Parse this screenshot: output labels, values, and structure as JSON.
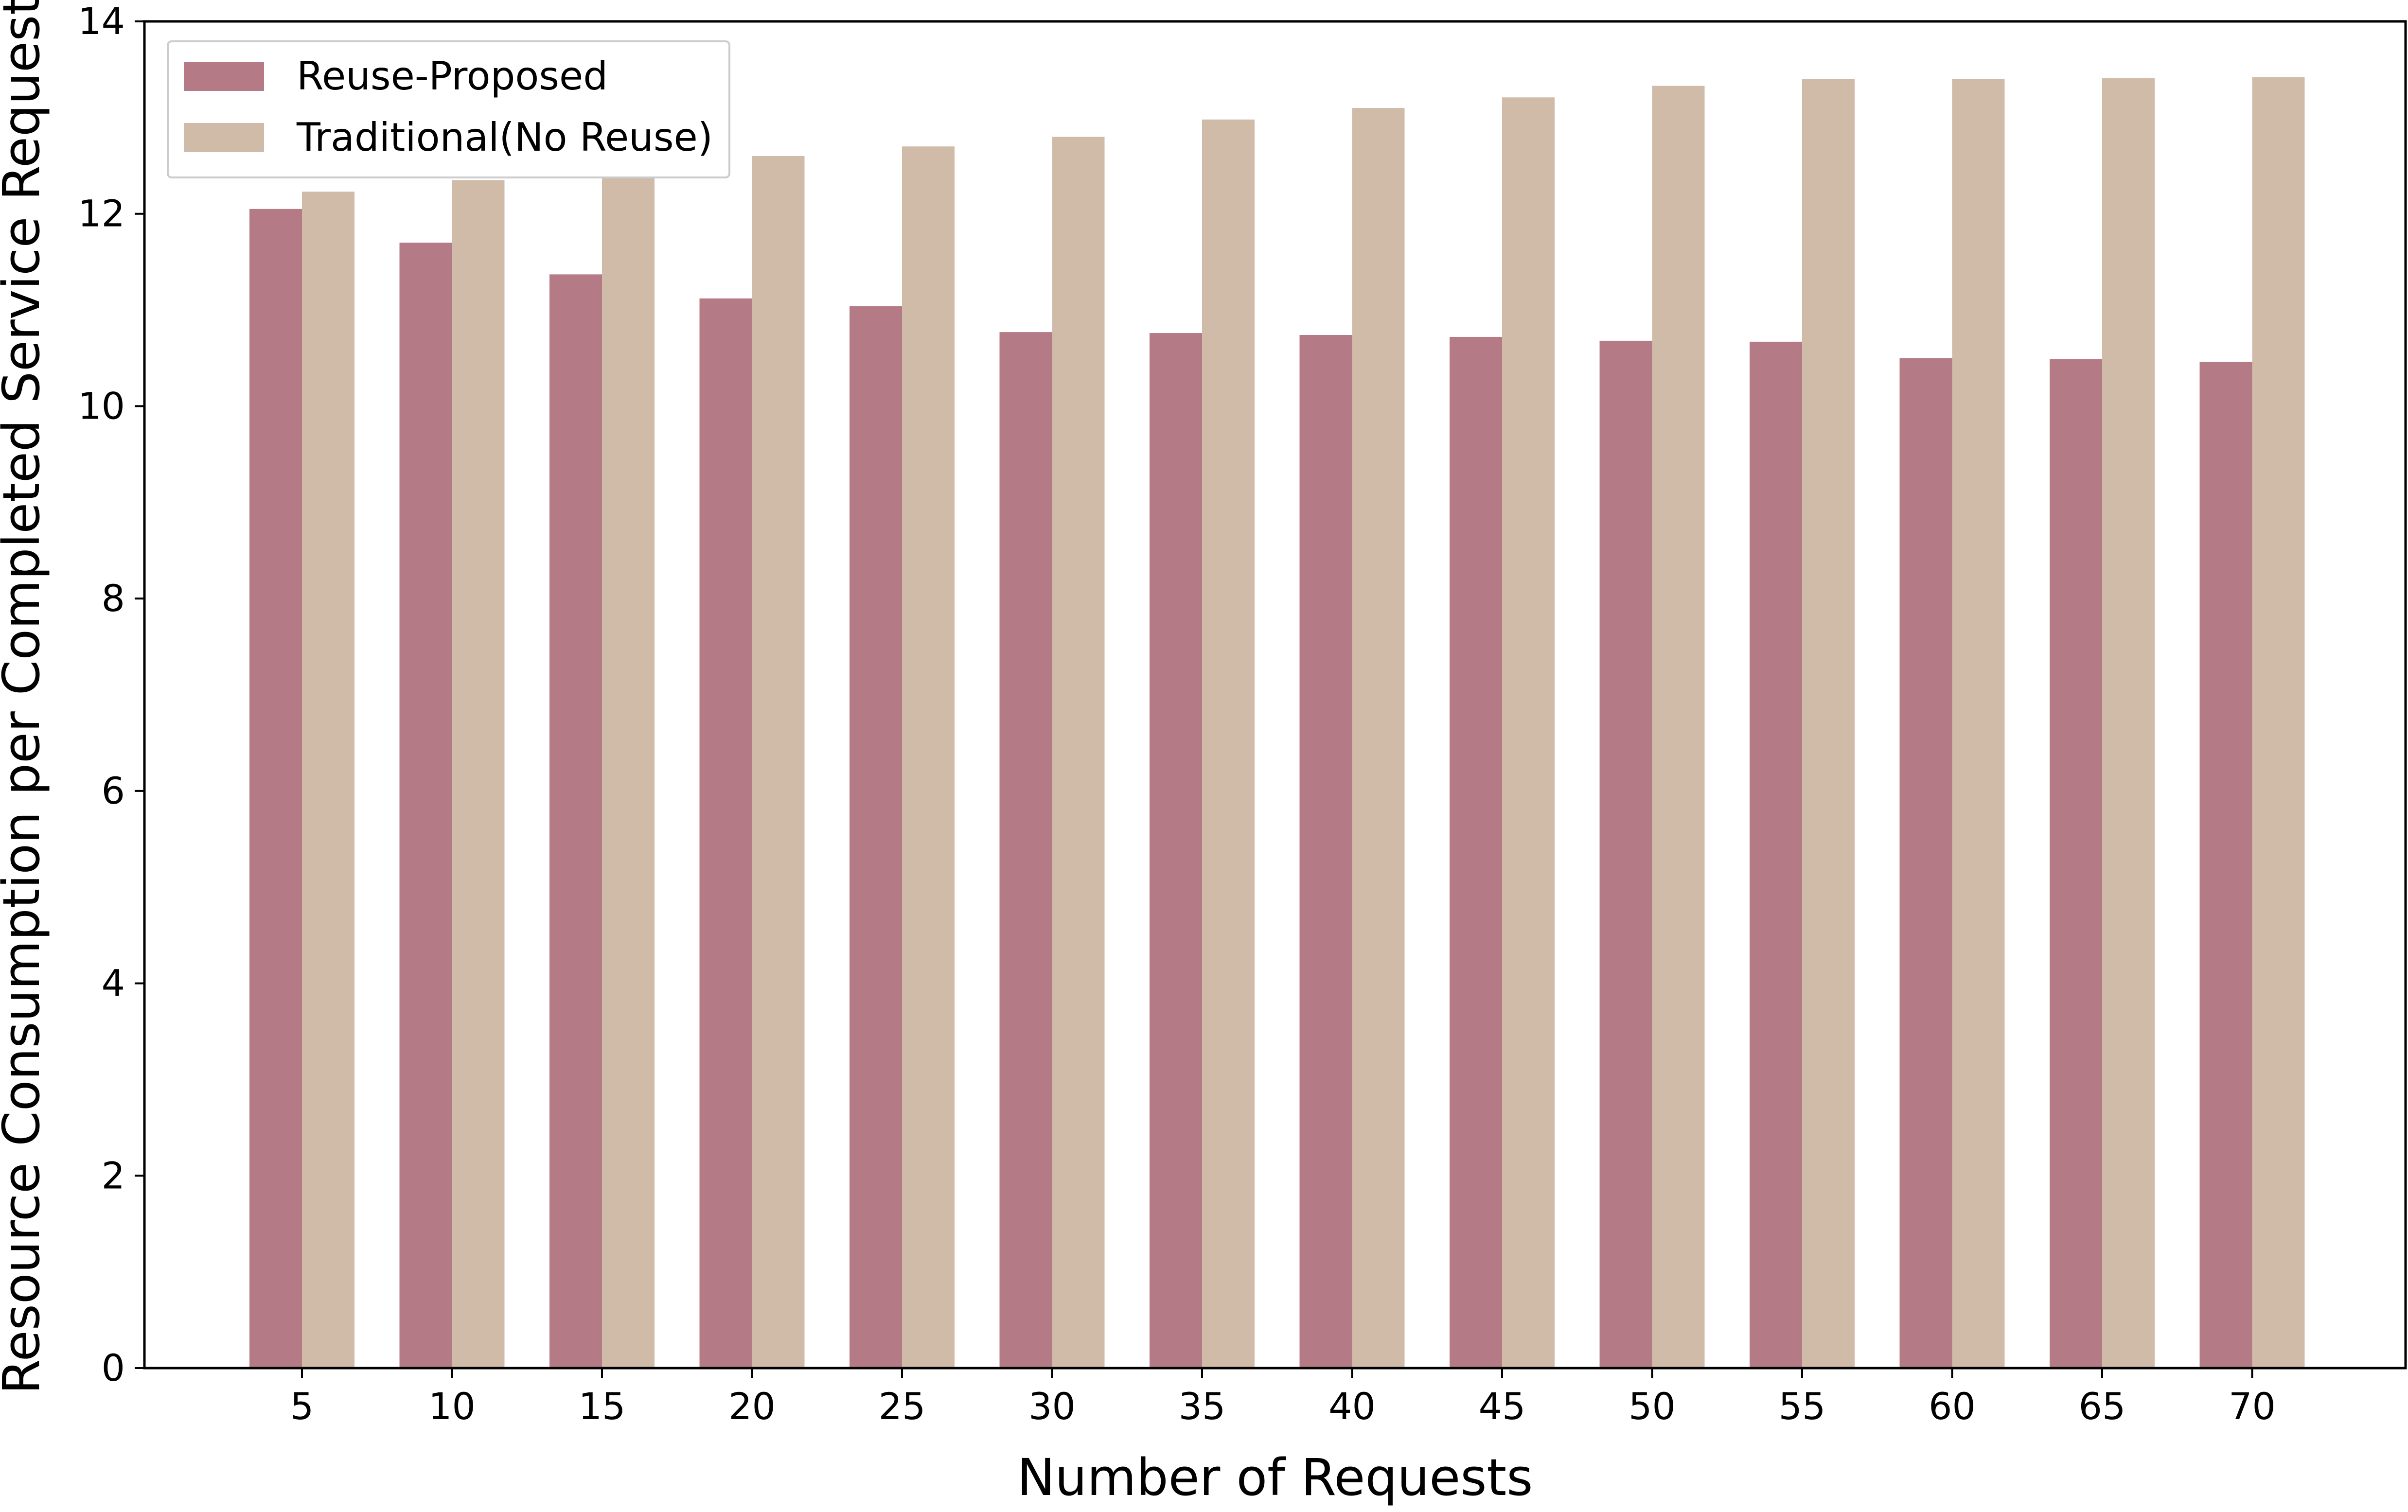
{
  "chart_data": {
    "type": "bar",
    "title": "",
    "xlabel": "Number of Requests",
    "ylabel": "Resource Consumption per Completed Service Request",
    "categories": [
      "5",
      "10",
      "15",
      "20",
      "25",
      "30",
      "35",
      "40",
      "45",
      "50",
      "55",
      "60",
      "65",
      "70"
    ],
    "series": [
      {
        "name": "Reuse-Proposed",
        "color": "#b47b86",
        "values": [
          12.05,
          11.7,
          11.37,
          11.12,
          11.04,
          10.77,
          10.76,
          10.74,
          10.72,
          10.68,
          10.67,
          10.5,
          10.49,
          10.46
        ]
      },
      {
        "name": "Traditional(No Reuse)",
        "color": "#cfbba8",
        "values": [
          12.23,
          12.35,
          12.45,
          12.6,
          12.7,
          12.8,
          12.98,
          13.1,
          13.21,
          13.33,
          13.4,
          13.4,
          13.41,
          13.42
        ]
      }
    ],
    "ylim": [
      0,
      14
    ],
    "yticks": [
      "0",
      "2",
      "4",
      "6",
      "8",
      "10",
      "12",
      "14"
    ],
    "grid": false,
    "legend_position": "top-left"
  }
}
